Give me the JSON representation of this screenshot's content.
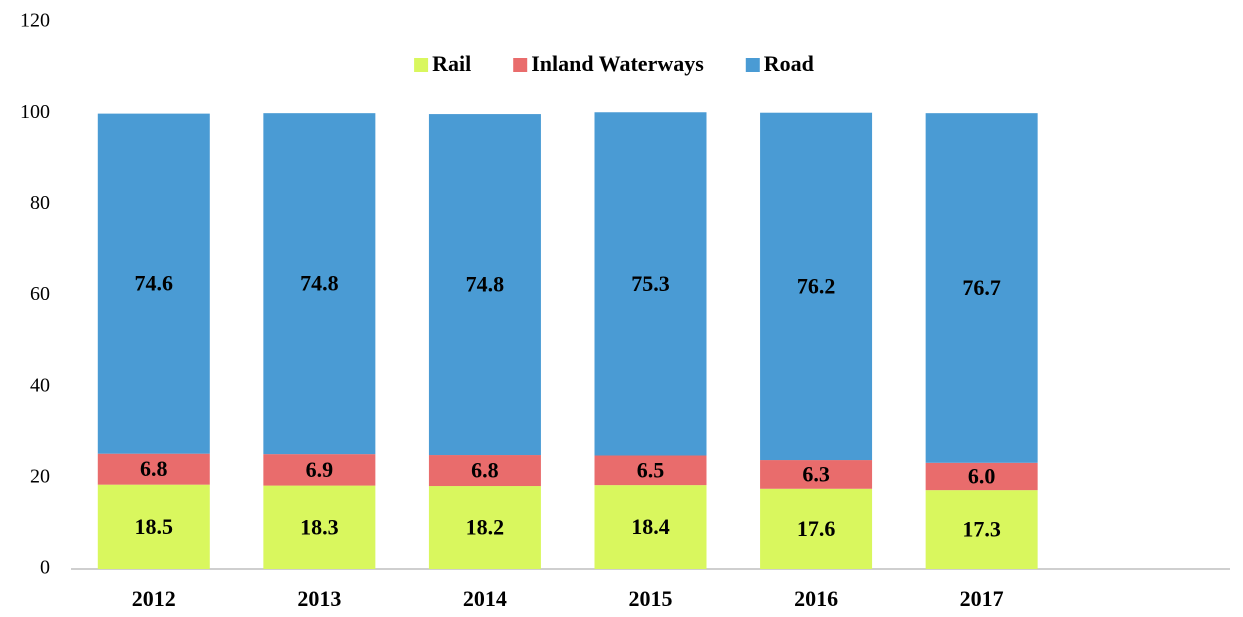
{
  "chart_data": {
    "type": "stacked_bar",
    "categories": [
      "2012",
      "2013",
      "2014",
      "2015",
      "2016",
      "2017",
      null
    ],
    "series": [
      {
        "name": "Rail",
        "color": "#d9f75e",
        "values": [
          18.5,
          18.3,
          18.2,
          18.4,
          17.6,
          17.3,
          null
        ]
      },
      {
        "name": "Inland Waterways",
        "color": "#e96c6c",
        "values": [
          6.8,
          6.9,
          6.8,
          6.5,
          6.3,
          6.0,
          null
        ],
        "value_labels": [
          "6.8",
          "6.9",
          "6.8",
          "6.5",
          "6.3",
          "6.0",
          null
        ]
      },
      {
        "name": "Road",
        "color": "#4a9bd4",
        "values": [
          74.6,
          74.8,
          74.8,
          75.3,
          76.2,
          76.7,
          null
        ]
      }
    ],
    "ylim": [
      0,
      120
    ],
    "yticks": [
      0,
      20,
      40,
      60,
      80,
      100,
      120
    ],
    "grid": false,
    "legend": "top"
  }
}
